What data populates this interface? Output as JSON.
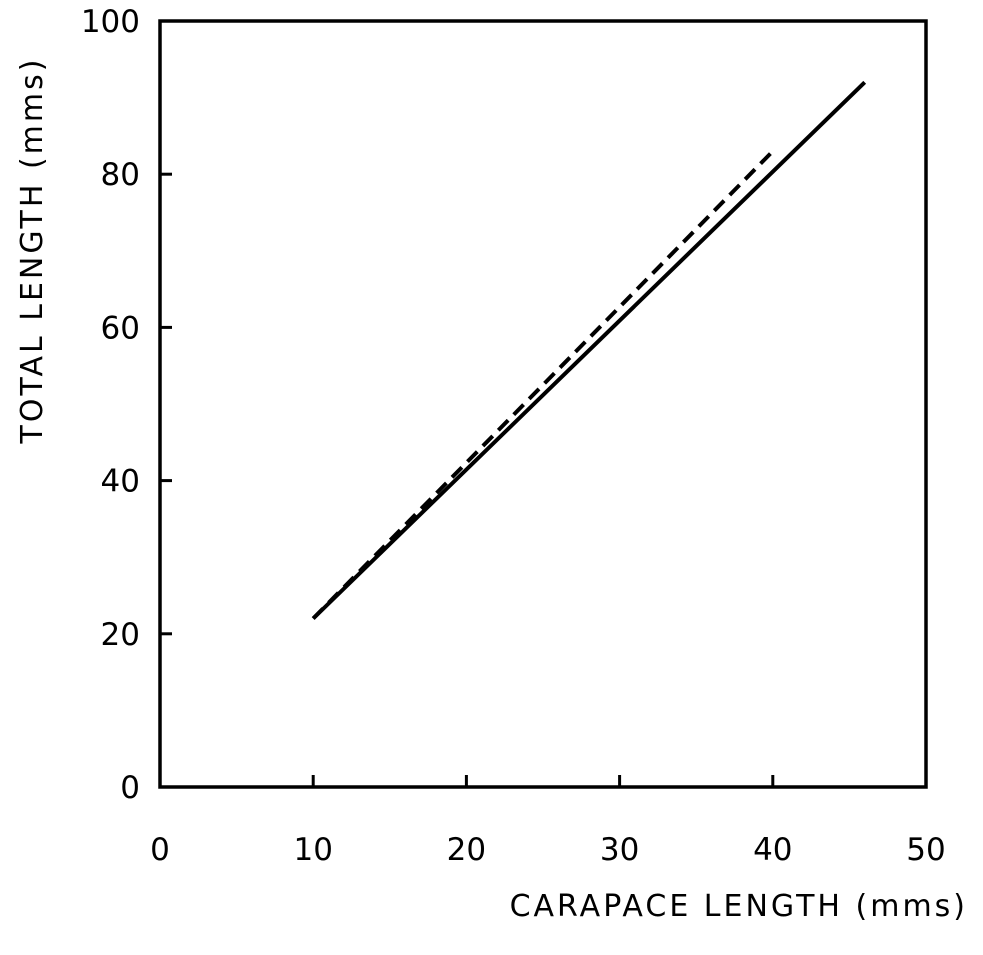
{
  "chart_data": {
    "type": "line",
    "title": "",
    "xlabel": "CARAPACE LENGTH (mms)",
    "ylabel": "TOTAL LENGTH (mms)",
    "xlim": [
      0,
      50
    ],
    "ylim": [
      0,
      100
    ],
    "x_ticks": [
      "0",
      "10",
      "20",
      "30",
      "40",
      "50"
    ],
    "y_ticks": [
      "0",
      "20",
      "40",
      "60",
      "80",
      "100"
    ],
    "grid": false,
    "legend": "none",
    "series": [
      {
        "style": "solid",
        "color": "#000000",
        "x": [
          10,
          46
        ],
        "y": [
          22,
          92
        ]
      },
      {
        "style": "dashed",
        "color": "#000000",
        "x": [
          10,
          40
        ],
        "y": [
          22,
          83
        ]
      }
    ]
  }
}
